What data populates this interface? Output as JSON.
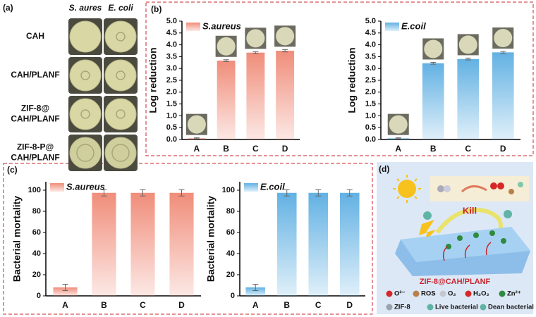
{
  "panel_labels": [
    "(a)",
    "(b)",
    "(c)",
    "(d)"
  ],
  "panel_a": {
    "columns": [
      "S. aures",
      "E. coli"
    ],
    "rows": [
      [
        "CAH"
      ],
      [
        "CAH/PLANF"
      ],
      [
        "ZIF-8@",
        "CAH/PLANF"
      ],
      [
        "ZIF-8-P@",
        "CAH/PLANF"
      ]
    ]
  },
  "chart_data": [
    {
      "type": "bar",
      "y_label": "Log reduction",
      "categories": [
        "A",
        "B",
        "C",
        "D"
      ],
      "series": [
        {
          "name": "S.aureus",
          "color": "#f08d7a",
          "values": [
            0.05,
            3.33,
            3.67,
            3.75
          ],
          "errors": [
            0.02,
            0.04,
            0.04,
            0.05
          ]
        }
      ],
      "ylim": [
        0,
        5
      ],
      "yticks": [
        {
          "value": 0,
          "label": "0.0"
        },
        0.5,
        {
          "value": 1,
          "label": "1.0"
        },
        1.5,
        {
          "value": 2,
          "label": "2.0"
        },
        2.5,
        {
          "value": 3,
          "label": "3.0"
        },
        3.5,
        {
          "value": 4,
          "label": "4.0"
        },
        4.5,
        {
          "value": 5,
          "label": "5.0"
        }
      ]
    },
    {
      "type": "bar",
      "y_label": "Log reduction",
      "categories": [
        "A",
        "B",
        "C",
        "D"
      ],
      "series": [
        {
          "name": "E.coil",
          "color": "#62b1e3",
          "values": [
            0.05,
            3.22,
            3.4,
            3.68
          ],
          "errors": [
            0.02,
            0.04,
            0.04,
            0.04
          ]
        }
      ],
      "ylim": [
        0,
        5
      ],
      "yticks": [
        {
          "value": 0,
          "label": "0.0"
        },
        0.5,
        {
          "value": 1,
          "label": "1.0"
        },
        1.5,
        {
          "value": 2,
          "label": "2.0"
        },
        2.5,
        {
          "value": 3,
          "label": "3.0"
        },
        3.5,
        {
          "value": 4,
          "label": "4.0"
        },
        4.5,
        {
          "value": 5,
          "label": "5.0"
        }
      ]
    },
    {
      "type": "bar",
      "y_label": "Bacterial mortality",
      "categories": [
        "A",
        "B",
        "C",
        "D"
      ],
      "series": [
        {
          "name": "S.aureus",
          "color": "#f08d7a",
          "values": [
            8,
            97.5,
            97.5,
            97.5
          ],
          "errors": [
            3,
            3,
            3,
            3
          ]
        }
      ],
      "ylim": [
        0,
        108
      ],
      "yticks": [
        0,
        20,
        40,
        60,
        80,
        100
      ]
    },
    {
      "type": "bar",
      "y_label": "Bacterial mortality",
      "categories": [
        "A",
        "B",
        "C",
        "D"
      ],
      "series": [
        {
          "name": "E.coil",
          "color": "#62b1e3",
          "values": [
            8,
            97.5,
            97.5,
            97.5
          ],
          "errors": [
            3,
            3,
            3,
            3
          ]
        }
      ],
      "ylim": [
        0,
        108
      ],
      "yticks": [
        0,
        20,
        40,
        60,
        80,
        100
      ]
    }
  ],
  "panel_d": {
    "kill": "Kill",
    "material": "ZIF-8@CAH/PLANF",
    "legend": [
      "O²⁻",
      "ROS",
      "O₂",
      "H₂O₂",
      "Zn²⁺",
      "ZIF-8",
      "Live bacterial",
      "Dean bacterial"
    ]
  }
}
